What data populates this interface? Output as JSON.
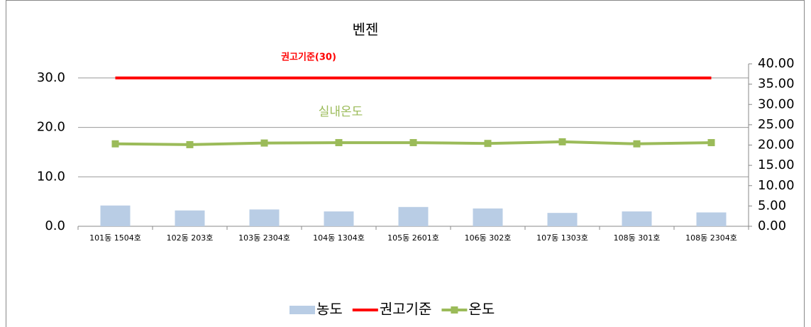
{
  "chart_data": {
    "type": "bar-line",
    "title": "벤젠",
    "annotations": [
      "권고기준(30)",
      "실내온도"
    ],
    "categories": [
      "101동 1504호",
      "102동 203호",
      "103동 2304호",
      "104동 1304호",
      "105동 2601호",
      "106동 302호",
      "107동 1303호",
      "108동 301호",
      "108동 2304호"
    ],
    "series": [
      {
        "name": "농도",
        "type": "bar",
        "color": "#b9cde5",
        "values": [
          4.2,
          3.2,
          3.4,
          3.0,
          3.9,
          3.6,
          2.7,
          3.0,
          2.8
        ]
      },
      {
        "name": "권고기준",
        "type": "line",
        "color": "#ff0000",
        "values": [
          30,
          30,
          30,
          30,
          30,
          30,
          30,
          30,
          30
        ]
      },
      {
        "name": "온도",
        "type": "line",
        "color": "#9bbb59",
        "axis": "y2",
        "marker": "square",
        "values": [
          20.3,
          20.1,
          20.5,
          20.6,
          20.6,
          20.4,
          20.8,
          20.3,
          20.6
        ]
      }
    ],
    "ylim": [
      0,
      32.85
    ],
    "yticks": [
      {
        "value": 0,
        "label": "0.0"
      },
      {
        "value": 10,
        "label": "10.0"
      },
      {
        "value": 20,
        "label": "20.0"
      },
      {
        "value": 30,
        "label": "30.0"
      }
    ],
    "y2lim": [
      0,
      40
    ],
    "y2ticks": [
      {
        "value": 0,
        "label": "0.00"
      },
      {
        "value": 5,
        "label": "5.00"
      },
      {
        "value": 10,
        "label": "10.00"
      },
      {
        "value": 15,
        "label": "15.00"
      },
      {
        "value": 20,
        "label": "20.00"
      },
      {
        "value": 25,
        "label": "25.00"
      },
      {
        "value": 30,
        "label": "30.00"
      },
      {
        "value": 35,
        "label": "35.00"
      },
      {
        "value": 40,
        "label": "40.00"
      }
    ],
    "grid": true,
    "legend": "bottom"
  }
}
